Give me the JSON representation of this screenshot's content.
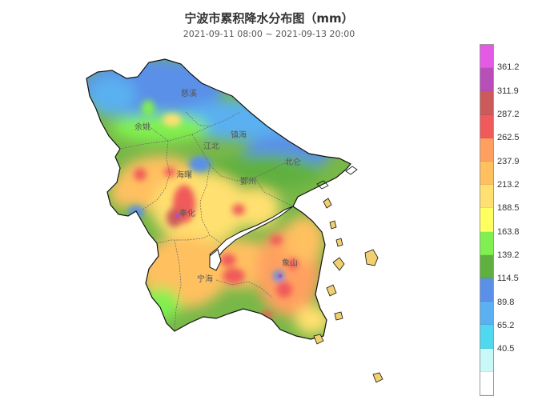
{
  "header": {
    "title": "宁波市累积降水分布图（mm）",
    "subtitle": "2021-09-11 08:00 ~ 2021-09-13 20:00"
  },
  "districts": [
    "慈溪",
    "余姚",
    "江北",
    "镇海",
    "北仑",
    "海曙",
    "鄞州",
    "奉化",
    "宁海",
    "象山"
  ],
  "legend": {
    "labels": [
      "361.2",
      "311.9",
      "287.2",
      "262.5",
      "237.9",
      "213.2",
      "188.5",
      "163.8",
      "139.2",
      "114.5",
      "89.8",
      "65.2",
      "40.5"
    ],
    "colors": [
      "#e55ae5",
      "#b84fb8",
      "#cc5a5a",
      "#f05a5a",
      "#ffa060",
      "#ffc060",
      "#ffe070",
      "#ffff60",
      "#80f050",
      "#60b040",
      "#5a90e8",
      "#5ab0f0",
      "#50d8f0",
      "#c8f8f8",
      "#ffffff"
    ]
  }
}
